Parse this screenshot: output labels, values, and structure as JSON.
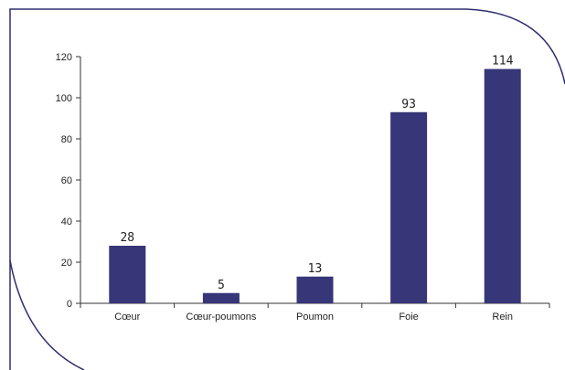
{
  "colors": {
    "bar": "#363678",
    "frame": "#2e2e6e",
    "axis": "#333333"
  },
  "chart_data": {
    "type": "bar",
    "title": "",
    "xlabel": "",
    "ylabel": "",
    "categories": [
      "Cœur",
      "Cœur-poumons",
      "Poumon",
      "Foie",
      "Rein"
    ],
    "values": [
      28,
      5,
      13,
      93,
      114
    ],
    "ylim": [
      0,
      120
    ],
    "yticks": [
      0,
      20,
      40,
      60,
      80,
      100,
      120
    ],
    "grid": false,
    "data_labels": true
  }
}
